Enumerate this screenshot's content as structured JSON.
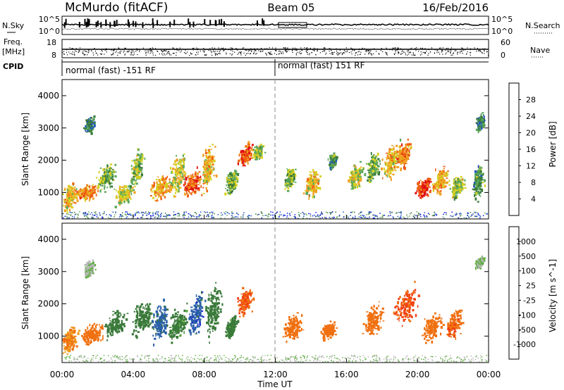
{
  "header": {
    "station": "McMurdo (fitACF)",
    "beam": "Beam 05",
    "date": "16/Feb/2016"
  },
  "top_panels": {
    "nsky_label": "N.Sky",
    "nsearch_label": "N.Search",
    "nsky_ticks": [
      "10^5",
      "10^0"
    ],
    "freq_label_1": "Freq.",
    "freq_label_2": "[MHz]",
    "freq_ticks": [
      "18",
      "8"
    ],
    "nave_label": "Nave",
    "nave_ticks": [
      "60",
      "0"
    ],
    "cpid_label": "CPID",
    "cpid_segments": [
      "normal (fast) -151 RF",
      "normal (fast) 151 RF"
    ]
  },
  "chart_data": [
    {
      "type": "heatmap",
      "title": "",
      "ylabel": "Slant Range [km]",
      "xlabel": "",
      "ylim": [
        180,
        4500
      ],
      "yticks": [
        "1000",
        "2000",
        "3000",
        "4000"
      ],
      "colorbar": {
        "label": "Power [dB]",
        "ticks": [
          "4",
          "8",
          "12",
          "16",
          "20",
          "24",
          "28"
        ],
        "colors": [
          "#0a14f0",
          "#2050c8",
          "#3a7a3a",
          "#5aa85a",
          "#d6d020",
          "#f0a020",
          "#f06010",
          "#e01010"
        ]
      },
      "blobs": [
        {
          "t": 0.4,
          "r": 900,
          "dt": 0.5,
          "dr": 500,
          "v": 20
        },
        {
          "t": 1.3,
          "r": 1000,
          "dt": 0.8,
          "dr": 300,
          "v": 24
        },
        {
          "t": 1.5,
          "r": 3100,
          "dt": 0.4,
          "dr": 300,
          "v": 10
        },
        {
          "t": 2.5,
          "r": 1500,
          "dt": 0.7,
          "dr": 500,
          "v": 14
        },
        {
          "t": 3.5,
          "r": 1000,
          "dt": 0.7,
          "dr": 400,
          "v": 18
        },
        {
          "t": 4.2,
          "r": 1800,
          "dt": 0.5,
          "dr": 700,
          "v": 16
        },
        {
          "t": 5.5,
          "r": 1200,
          "dt": 0.8,
          "dr": 500,
          "v": 22
        },
        {
          "t": 6.5,
          "r": 1600,
          "dt": 0.6,
          "dr": 800,
          "v": 18
        },
        {
          "t": 7.3,
          "r": 1300,
          "dt": 0.7,
          "dr": 500,
          "v": 26
        },
        {
          "t": 8.2,
          "r": 1800,
          "dt": 0.5,
          "dr": 900,
          "v": 20
        },
        {
          "t": 9.5,
          "r": 1400,
          "dt": 0.5,
          "dr": 500,
          "v": 14
        },
        {
          "t": 10.3,
          "r": 2200,
          "dt": 0.5,
          "dr": 400,
          "v": 26
        },
        {
          "t": 11.0,
          "r": 2300,
          "dt": 0.4,
          "dr": 300,
          "v": 16
        },
        {
          "t": 12.8,
          "r": 1500,
          "dt": 0.4,
          "dr": 400,
          "v": 14
        },
        {
          "t": 14.0,
          "r": 1300,
          "dt": 0.6,
          "dr": 500,
          "v": 20
        },
        {
          "t": 15.2,
          "r": 2000,
          "dt": 0.3,
          "dr": 300,
          "v": 12
        },
        {
          "t": 16.5,
          "r": 1500,
          "dt": 0.6,
          "dr": 500,
          "v": 18
        },
        {
          "t": 17.5,
          "r": 1800,
          "dt": 0.5,
          "dr": 600,
          "v": 14
        },
        {
          "t": 18.5,
          "r": 2000,
          "dt": 0.6,
          "dr": 600,
          "v": 20
        },
        {
          "t": 19.2,
          "r": 2200,
          "dt": 0.5,
          "dr": 500,
          "v": 24
        },
        {
          "t": 20.3,
          "r": 1200,
          "dt": 0.6,
          "dr": 400,
          "v": 28
        },
        {
          "t": 21.3,
          "r": 1400,
          "dt": 0.6,
          "dr": 500,
          "v": 22
        },
        {
          "t": 22.2,
          "r": 1200,
          "dt": 0.5,
          "dr": 400,
          "v": 16
        },
        {
          "t": 23.4,
          "r": 1400,
          "dt": 0.4,
          "dr": 700,
          "v": 12
        },
        {
          "t": 23.5,
          "r": 3200,
          "dt": 0.3,
          "dr": 300,
          "v": 10
        }
      ]
    },
    {
      "type": "heatmap",
      "title": "",
      "ylabel": "Slant Range [km]",
      "xlabel": "Time UT",
      "ylim": [
        180,
        4500
      ],
      "yticks": [
        "1000",
        "2000",
        "3000",
        "4000"
      ],
      "xticks": [
        "00:00",
        "04:00",
        "08:00",
        "12:00",
        "16:00",
        "20:00",
        "00:00"
      ],
      "colorbar": {
        "label": "Velocity [m s^-1]",
        "ticks": [
          "1000",
          "500",
          "100",
          "25",
          "-25",
          "-100",
          "-500",
          "-1000"
        ],
        "colors": [
          "#1a2ad0",
          "#2a60a8",
          "#3a7a3a",
          "#60b040",
          "#b8b8b8",
          "#f0a020",
          "#f07010",
          "#f04010",
          "#e01010"
        ]
      },
      "blobs": [
        {
          "t": 0.4,
          "r": 900,
          "dt": 0.6,
          "dr": 500,
          "v": -100
        },
        {
          "t": 1.5,
          "r": 3100,
          "dt": 0.4,
          "dr": 300,
          "v": 25
        },
        {
          "t": 1.7,
          "r": 1100,
          "dt": 0.8,
          "dr": 400,
          "v": -300
        },
        {
          "t": 3.0,
          "r": 1400,
          "dt": 0.8,
          "dr": 500,
          "v": 200
        },
        {
          "t": 4.5,
          "r": 1600,
          "dt": 0.8,
          "dr": 600,
          "v": 200
        },
        {
          "t": 5.5,
          "r": 1500,
          "dt": 0.6,
          "dr": 700,
          "v": 700
        },
        {
          "t": 6.5,
          "r": 1400,
          "dt": 0.8,
          "dr": 600,
          "v": 150
        },
        {
          "t": 7.5,
          "r": 1700,
          "dt": 0.6,
          "dr": 800,
          "v": 800
        },
        {
          "t": 8.5,
          "r": 1800,
          "dt": 0.6,
          "dr": 900,
          "v": 200
        },
        {
          "t": 9.5,
          "r": 1300,
          "dt": 0.4,
          "dr": 400,
          "v": 150
        },
        {
          "t": 10.3,
          "r": 2100,
          "dt": 0.6,
          "dr": 500,
          "v": -500
        },
        {
          "t": 13.0,
          "r": 1300,
          "dt": 0.7,
          "dr": 500,
          "v": -300
        },
        {
          "t": 15.0,
          "r": 1200,
          "dt": 0.5,
          "dr": 300,
          "v": -200
        },
        {
          "t": 17.5,
          "r": 1500,
          "dt": 0.7,
          "dr": 600,
          "v": -300
        },
        {
          "t": 19.3,
          "r": 2000,
          "dt": 0.9,
          "dr": 700,
          "v": -600
        },
        {
          "t": 20.8,
          "r": 1300,
          "dt": 0.8,
          "dr": 500,
          "v": -300
        },
        {
          "t": 22.0,
          "r": 1400,
          "dt": 0.6,
          "dr": 500,
          "v": -400
        },
        {
          "t": 23.5,
          "r": 3300,
          "dt": 0.3,
          "dr": 200,
          "v": 25
        }
      ]
    }
  ]
}
